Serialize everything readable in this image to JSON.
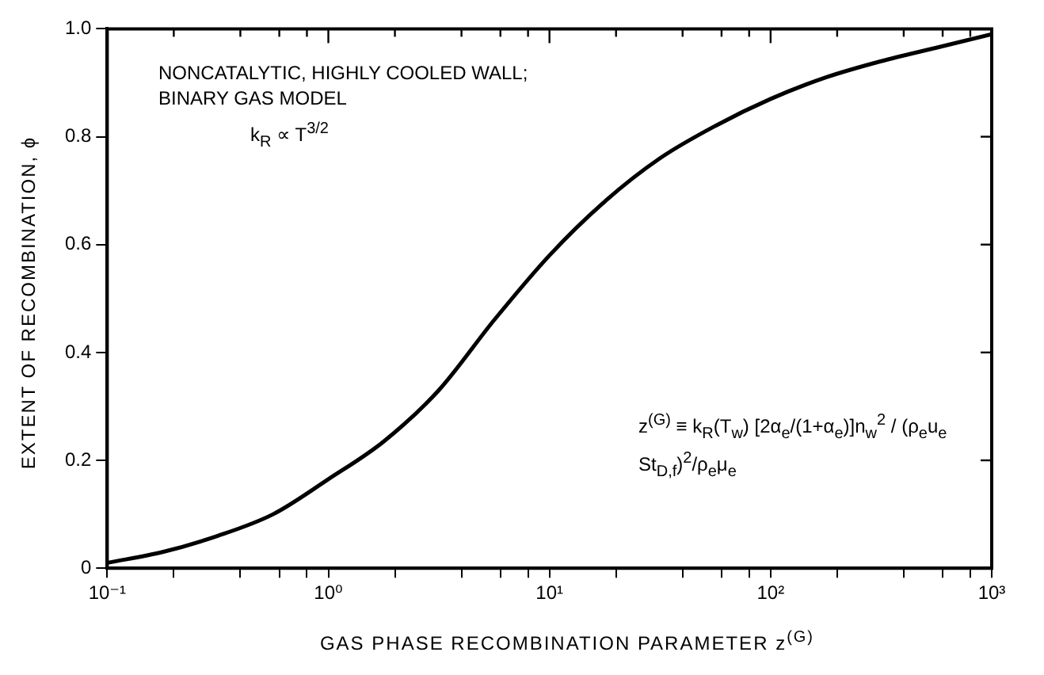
{
  "chart_data": {
    "type": "line",
    "xlabel": "GAS PHASE RECOMBINATION PARAMETER z$^{(G)}$",
    "ylabel": "EXTENT OF RECOMBINATION, ϕ",
    "annotations": [
      "NONCATALYTIC, HIGHLY COOLED WALL; BINARY GAS MODEL",
      "k$_{R}$ ∝ T$^{3/2}$",
      "z$^{(G)}$ ≡ k$_{R}$(T$_{w}$) [2α$_{e}$/(1+α$_{e}$)]n$_{w}$$^{2}$ / (ρ$_{e}$u$_{e}$ St$_{D,f}$)$^{2}$/ρ$_{e}$μ$_{e}$"
    ],
    "log": "x",
    "x": [
      0.1,
      0.178,
      0.316,
      0.562,
      1,
      1.78,
      3.16,
      5.62,
      10,
      17.8,
      31.6,
      56.2,
      100,
      178,
      316,
      562,
      1000
    ],
    "series": [
      {
        "color": "#000000",
        "values": [
          0.01,
          0.03,
          0.06,
          0.1,
          0.165,
          0.235,
          0.33,
          0.46,
          0.58,
          0.68,
          0.76,
          0.82,
          0.87,
          0.91,
          0.94,
          0.965,
          0.99
        ]
      }
    ],
    "xlim": [
      0.1,
      1000
    ],
    "xticks": [
      {
        "value": 0.1,
        "label": "10⁻¹"
      },
      {
        "value": 0.2,
        "label": null
      },
      {
        "value": 0.4,
        "label": null
      },
      {
        "value": 0.6,
        "label": null
      },
      {
        "value": 0.8,
        "label": null
      },
      {
        "value": 1,
        "label": "10⁰"
      },
      {
        "value": 2,
        "label": null
      },
      {
        "value": 4,
        "label": null
      },
      {
        "value": 6,
        "label": null
      },
      {
        "value": 8,
        "label": null
      },
      {
        "value": 10,
        "label": "10¹"
      },
      {
        "value": 20,
        "label": null
      },
      {
        "value": 40,
        "label": null
      },
      {
        "value": 60,
        "label": null
      },
      {
        "value": 80,
        "label": null
      },
      {
        "value": 100,
        "label": "10²"
      },
      {
        "value": 200,
        "label": null
      },
      {
        "value": 400,
        "label": null
      },
      {
        "value": 600,
        "label": null
      },
      {
        "value": 800,
        "label": null
      },
      {
        "value": 1000,
        "label": "10³"
      }
    ],
    "ylim": [
      0,
      1
    ],
    "yticks": [
      0,
      0.2,
      0.4,
      0.6,
      0.8,
      {
        "value": 1,
        "label": "1.0"
      }
    ],
    "grid": false,
    "legend": false,
    "marker": "none",
    "line_style": "solid"
  }
}
